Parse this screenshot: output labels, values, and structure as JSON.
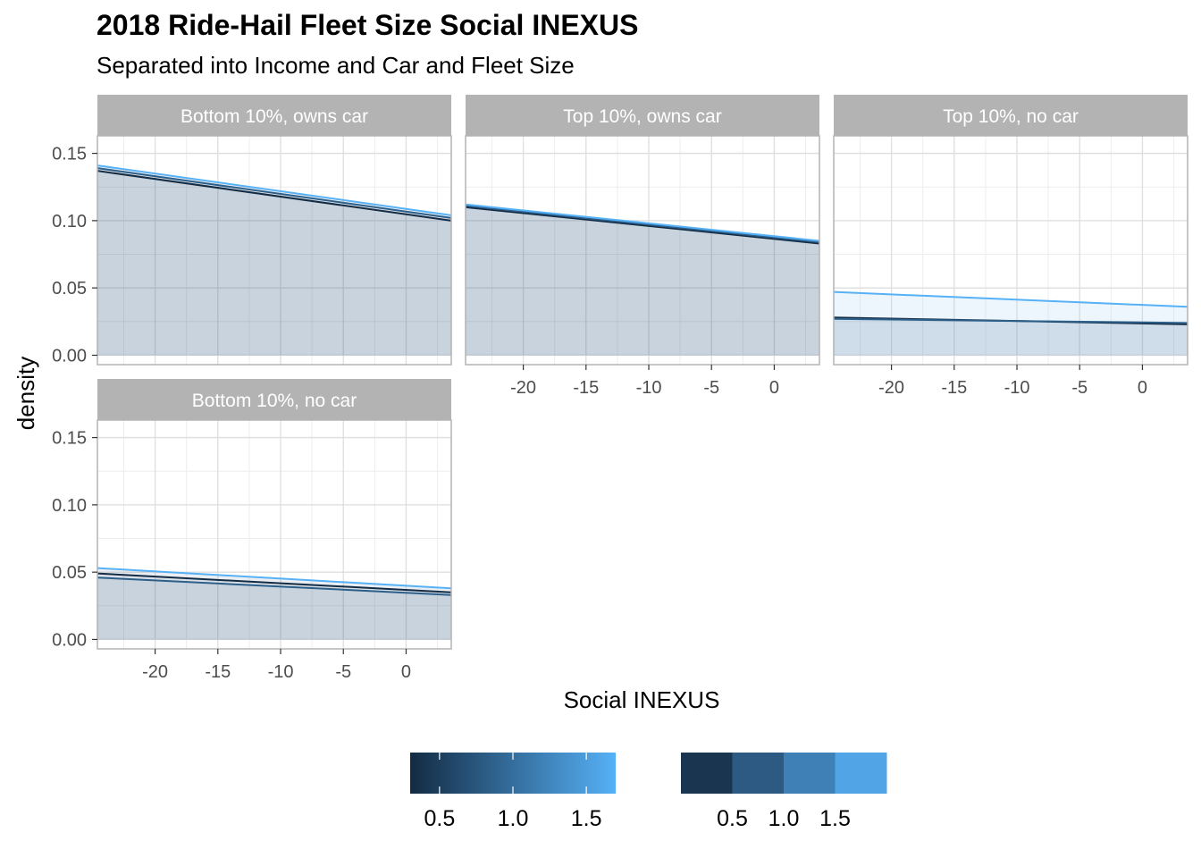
{
  "title": "2018 Ride-Hail Fleet Size Social INEXUS",
  "subtitle": "Separated into Income and Car and Fleet Size",
  "chart_data": {
    "type": "area",
    "title": "2018 Ride-Hail Fleet Size Social INEXUS",
    "subtitle": "Separated into Income and Car and Fleet Size",
    "xlabel": "Social INEXUS",
    "ylabel": "density",
    "xlim": [
      -24.6,
      3.6
    ],
    "ylim": [
      -0.007,
      0.163
    ],
    "x_ticks": [
      -20,
      -15,
      -10,
      -5,
      0
    ],
    "y_ticks": [
      0.0,
      0.05,
      0.1,
      0.15
    ],
    "x_tick_labels": [
      "-20",
      "-15",
      "-10",
      "-5",
      "0"
    ],
    "y_tick_labels": [
      "0.00",
      "0.05",
      "0.10",
      "0.15"
    ],
    "grid": true,
    "legend_placement": "bottom",
    "panels": [
      {
        "label": "Bottom 10%, owns car",
        "series": [
          {
            "color": "#132b43",
            "x": [
              -24.6,
              3.6
            ],
            "y": [
              0.137,
              0.1
            ]
          },
          {
            "color": "#2c5f8a",
            "x": [
              -24.6,
              3.6
            ],
            "y": [
              0.139,
              0.102
            ]
          },
          {
            "color": "#56b1f7",
            "x": [
              -24.6,
              3.6
            ],
            "y": [
              0.141,
              0.104
            ]
          }
        ]
      },
      {
        "label": "Top 10%, owns car",
        "series": [
          {
            "color": "#132b43",
            "x": [
              -24.6,
              3.6
            ],
            "y": [
              0.11,
              0.083
            ]
          },
          {
            "color": "#2c5f8a",
            "x": [
              -24.6,
              3.6
            ],
            "y": [
              0.111,
              0.084
            ]
          },
          {
            "color": "#56b1f7",
            "x": [
              -24.6,
              3.6
            ],
            "y": [
              0.112,
              0.085
            ]
          }
        ]
      },
      {
        "label": "Top 10%, no car",
        "series": [
          {
            "color": "#132b43",
            "x": [
              -24.6,
              3.6
            ],
            "y": [
              0.028,
              0.023
            ]
          },
          {
            "color": "#2c5f8a",
            "x": [
              -24.6,
              3.6
            ],
            "y": [
              0.027,
              0.024
            ]
          },
          {
            "color": "#56b1f7",
            "x": [
              -24.6,
              3.6
            ],
            "y": [
              0.047,
              0.036
            ]
          }
        ]
      },
      {
        "label": "Bottom 10%, no car",
        "series": [
          {
            "color": "#132b43",
            "x": [
              -24.6,
              3.6
            ],
            "y": [
              0.049,
              0.035
            ]
          },
          {
            "color": "#2c5f8a",
            "x": [
              -24.6,
              3.6
            ],
            "y": [
              0.046,
              0.033
            ]
          },
          {
            "color": "#56b1f7",
            "x": [
              -24.6,
              3.6
            ],
            "y": [
              0.053,
              0.038
            ]
          }
        ]
      }
    ],
    "legends": [
      {
        "kind": "continuous",
        "colors": [
          "#132b43",
          "#56b1f7"
        ],
        "range": [
          0.3,
          1.7
        ],
        "labels": [
          "0.5",
          "1.0",
          "1.5"
        ],
        "values": [
          0.5,
          1.0,
          1.5
        ]
      },
      {
        "kind": "binned",
        "colors": [
          "#1a3550",
          "#2c5a82",
          "#3f80b7",
          "#51a5e6"
        ],
        "labels": [
          "0.5",
          "1.0",
          "1.5"
        ]
      }
    ]
  }
}
